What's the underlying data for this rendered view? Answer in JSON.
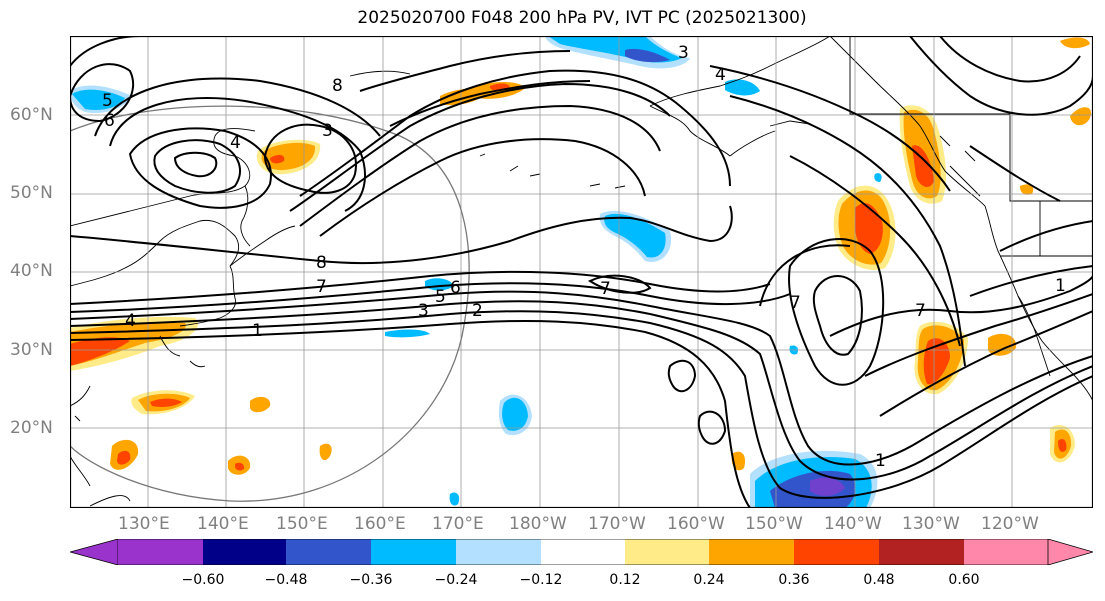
{
  "title": "2025020700 F048 200 hPa PV, IVT PC (2025021300)",
  "lat_labels": [
    "60°N",
    "50°N",
    "40°N",
    "30°N",
    "20°N"
  ],
  "lon_labels": [
    "130°E",
    "140°E",
    "150°E",
    "160°E",
    "170°E",
    "180°W",
    "170°W",
    "160°W",
    "150°W",
    "140°W",
    "130°W",
    "120°W"
  ],
  "colorbar": {
    "ticks": [
      "−0.60",
      "−0.48",
      "−0.36",
      "−0.24",
      "−0.12",
      "0.12",
      "0.24",
      "0.36",
      "0.48",
      "0.60"
    ],
    "colors": [
      "#9933cc",
      "#000088",
      "#3355cc",
      "#00bbff",
      "#b3e0ff",
      "#ffffff",
      "#ffeb88",
      "#ffa500",
      "#ff4400",
      "#b22222",
      "#ff88aa"
    ]
  },
  "contour_labels": [
    "1",
    "2",
    "3",
    "4",
    "5",
    "6",
    "7",
    "8",
    "3",
    "8",
    "4",
    "3",
    "5",
    "6",
    "4",
    "7",
    "1",
    "7",
    "7",
    "1"
  ],
  "colors": {
    "pos_light": "#ffeb88",
    "pos_mid": "#ffa500",
    "pos_strong": "#ff4400",
    "neg_light": "#b3e0ff",
    "neg_mid": "#00bbff",
    "neg_strong": "#3355cc"
  }
}
